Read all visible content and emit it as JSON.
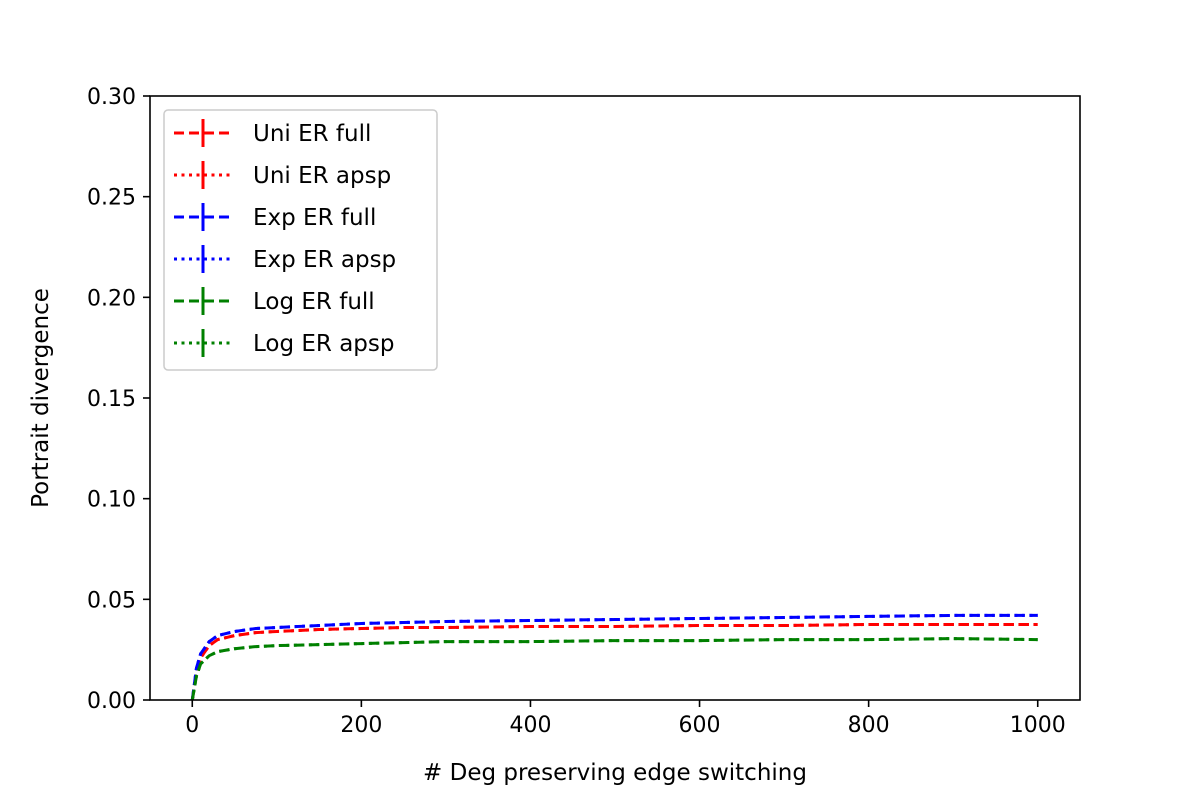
{
  "chart_data": {
    "type": "line",
    "title": "",
    "xlabel": "# Deg preserving edge switching",
    "ylabel": "Portrait divergence",
    "xlim": [
      -50,
      1050
    ],
    "ylim": [
      0,
      0.3
    ],
    "xticks": [
      0,
      200,
      400,
      600,
      800,
      1000
    ],
    "yticks": [
      0.0,
      0.05,
      0.1,
      0.15,
      0.2,
      0.25,
      0.3
    ],
    "xtick_labels": [
      "0",
      "200",
      "400",
      "600",
      "800",
      "1000"
    ],
    "ytick_labels": [
      "0.00",
      "0.05",
      "0.10",
      "0.15",
      "0.20",
      "0.25",
      "0.30"
    ],
    "grid": false,
    "legend_position": "upper-left",
    "x": [
      0,
      5,
      10,
      20,
      30,
      50,
      75,
      100,
      150,
      200,
      250,
      300,
      400,
      500,
      600,
      700,
      800,
      900,
      1000
    ],
    "series": [
      {
        "name": "Uni ER full",
        "color": "#ff0000",
        "style": "dashed",
        "values": [
          0.0,
          0.014,
          0.021,
          0.027,
          0.03,
          0.032,
          0.0335,
          0.034,
          0.035,
          0.0355,
          0.036,
          0.036,
          0.0365,
          0.0365,
          0.037,
          0.037,
          0.0375,
          0.0375,
          0.0375
        ]
      },
      {
        "name": "Uni ER apsp",
        "color": "#ff0000",
        "style": "dotted",
        "values": [
          0.0,
          0.014,
          0.021,
          0.027,
          0.03,
          0.032,
          0.0335,
          0.034,
          0.035,
          0.0355,
          0.036,
          0.036,
          0.0365,
          0.0365,
          0.037,
          0.037,
          0.0375,
          0.0375,
          0.0375
        ]
      },
      {
        "name": "Exp ER full",
        "color": "#0000ff",
        "style": "dashed",
        "values": [
          0.0,
          0.016,
          0.023,
          0.029,
          0.032,
          0.034,
          0.0355,
          0.036,
          0.037,
          0.038,
          0.0385,
          0.039,
          0.0395,
          0.04,
          0.0405,
          0.041,
          0.0415,
          0.042,
          0.042
        ]
      },
      {
        "name": "Exp ER apsp",
        "color": "#0000ff",
        "style": "dotted",
        "values": [
          0.0,
          0.016,
          0.023,
          0.029,
          0.032,
          0.034,
          0.0355,
          0.036,
          0.037,
          0.038,
          0.0385,
          0.039,
          0.0395,
          0.04,
          0.0405,
          0.041,
          0.0415,
          0.042,
          0.042
        ]
      },
      {
        "name": "Log ER full",
        "color": "#008000",
        "style": "dashed",
        "values": [
          0.0,
          0.012,
          0.018,
          0.022,
          0.024,
          0.0255,
          0.0265,
          0.027,
          0.0275,
          0.028,
          0.0285,
          0.029,
          0.029,
          0.0295,
          0.0295,
          0.03,
          0.03,
          0.0305,
          0.03
        ]
      },
      {
        "name": "Log ER apsp",
        "color": "#008000",
        "style": "dotted",
        "values": [
          0.0,
          0.012,
          0.018,
          0.022,
          0.024,
          0.0255,
          0.0265,
          0.027,
          0.0275,
          0.028,
          0.0285,
          0.029,
          0.029,
          0.0295,
          0.0295,
          0.03,
          0.03,
          0.0305,
          0.03
        ]
      }
    ]
  }
}
